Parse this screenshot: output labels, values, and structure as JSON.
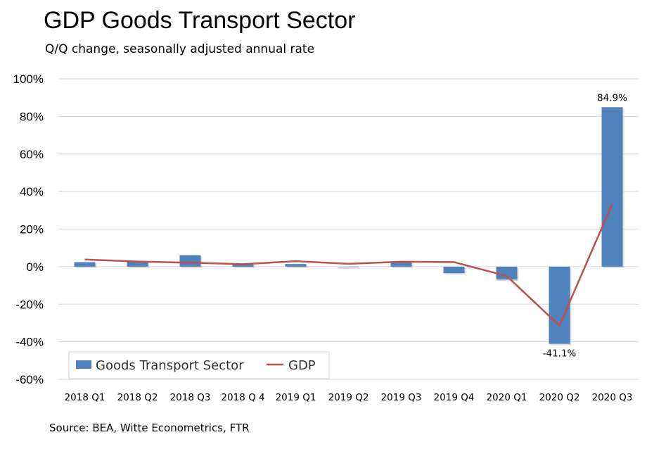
{
  "title": "GDP Goods Transport Sector",
  "subtitle": "Q/Q change, seasonally adjusted annual rate",
  "source": "Source: BEA, Witte Econometrics, FTR",
  "chart_data": {
    "type": "bar+line",
    "categories": [
      "2018 Q1",
      "2018 Q2",
      "2018 Q3",
      "2018 Q 4",
      "2019 Q1",
      "2019 Q2",
      "2019 Q3",
      "2019 Q4",
      "2020 Q1",
      "2020 Q2",
      "2020 Q3"
    ],
    "series": [
      {
        "name": "Goods Transport Sector",
        "type": "bar",
        "color": "#4F81BD",
        "values": [
          2.4,
          2.8,
          6.1,
          1.4,
          1.4,
          -0.3,
          2.5,
          -3.5,
          -6.9,
          -41.1,
          84.9
        ]
      },
      {
        "name": "GDP",
        "type": "line",
        "color": "#C0504D",
        "values": [
          3.8,
          2.7,
          2.1,
          1.3,
          2.9,
          1.5,
          2.6,
          2.4,
          -5.0,
          -31.4,
          33.4
        ]
      }
    ],
    "data_labels": [
      {
        "category": "2020 Q2",
        "text": "-41.1%"
      },
      {
        "category": "2020 Q3",
        "text": "84.9%"
      }
    ],
    "ylim": [
      -60,
      100
    ],
    "yticks": [
      -60,
      -40,
      -20,
      0,
      20,
      40,
      60,
      80,
      100
    ],
    "ytick_labels": [
      "-60%",
      "-40%",
      "-20%",
      "0%",
      "20%",
      "40%",
      "60%",
      "80%",
      "100%"
    ],
    "grid": true,
    "legend": "bottom-left"
  }
}
